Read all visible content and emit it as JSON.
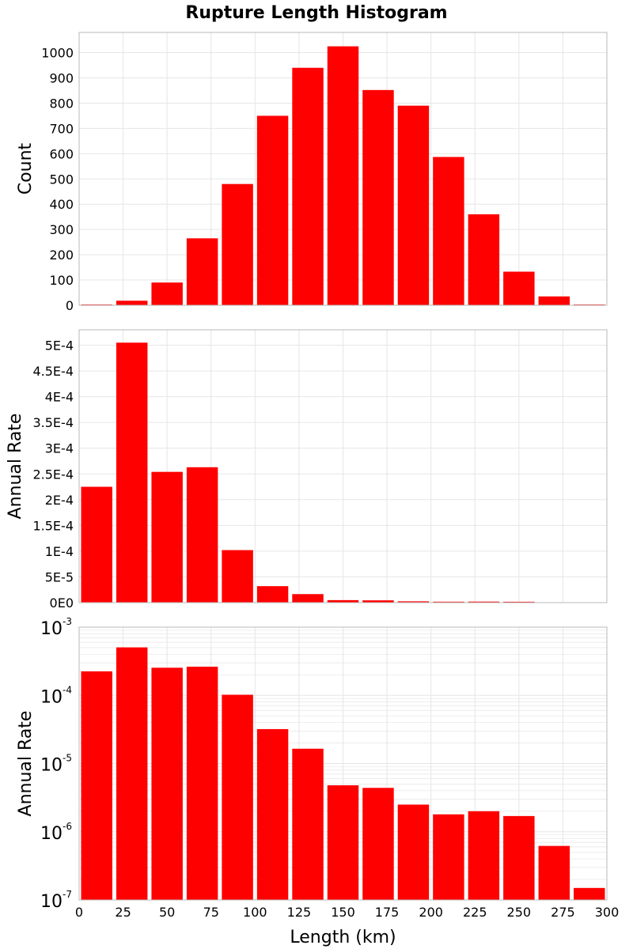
{
  "title": "Rupture Length Histogram",
  "bar_color": "#ff0000",
  "grid_color": "#e6e6e6",
  "frame_color": "#b8b8b8",
  "chart_data": [
    {
      "type": "bar",
      "title": "Rupture Length Histogram",
      "xlabel": "",
      "ylabel": "Count",
      "xlim": [
        0,
        300
      ],
      "ylim": [
        0,
        1080
      ],
      "y_scale": "linear",
      "grid": true,
      "bin_width": 20,
      "x": [
        10,
        30,
        50,
        70,
        90,
        110,
        130,
        150,
        170,
        190,
        210,
        230,
        250,
        270,
        290
      ],
      "values": [
        3,
        18,
        90,
        265,
        480,
        750,
        940,
        1025,
        852,
        790,
        587,
        360,
        133,
        35,
        3
      ],
      "yticks": [
        0,
        100,
        200,
        300,
        400,
        500,
        600,
        700,
        800,
        900,
        1000
      ],
      "ytick_labels": [
        "0",
        "100",
        "200",
        "300",
        "400",
        "500",
        "600",
        "700",
        "800",
        "900",
        "1000"
      ]
    },
    {
      "type": "bar",
      "xlabel": "",
      "ylabel": "Annual Rate",
      "xlim": [
        0,
        300
      ],
      "ylim": [
        0,
        0.00053
      ],
      "y_scale": "linear",
      "grid": true,
      "bin_width": 20,
      "x": [
        10,
        30,
        50,
        70,
        90,
        110,
        130,
        150,
        170,
        190,
        210,
        230,
        250,
        270,
        290
      ],
      "values": [
        0.000225,
        0.000505,
        0.000254,
        0.000263,
        0.000102,
        3.2e-05,
        1.65e-05,
        4.8e-06,
        4.4e-06,
        2.5e-06,
        1.8e-06,
        2e-06,
        1.7e-06,
        6.2e-07,
        1.5e-07
      ],
      "yticks": [
        0,
        5e-05,
        0.0001,
        0.00015,
        0.0002,
        0.00025,
        0.0003,
        0.00035,
        0.0004,
        0.00045,
        0.0005
      ],
      "ytick_labels": [
        "0E0",
        "5E-5",
        "1E-4",
        "1.5E-4",
        "2E-4",
        "2.5E-4",
        "3E-4",
        "3.5E-4",
        "4E-4",
        "4.5E-4",
        "5E-4"
      ]
    },
    {
      "type": "bar",
      "xlabel": "Length (km)",
      "ylabel": "Annual Rate",
      "xlim": [
        0,
        300
      ],
      "ylim": [
        1e-07,
        0.001
      ],
      "y_scale": "log",
      "grid": true,
      "bin_width": 20,
      "x": [
        10,
        30,
        50,
        70,
        90,
        110,
        130,
        150,
        170,
        190,
        210,
        230,
        250,
        270,
        290
      ],
      "values": [
        0.000225,
        0.000505,
        0.000254,
        0.000263,
        0.000102,
        3.2e-05,
        1.65e-05,
        4.8e-06,
        4.4e-06,
        2.5e-06,
        1.8e-06,
        2e-06,
        1.7e-06,
        6.2e-07,
        1.5e-07
      ],
      "ytick_labels": [
        {
          "base": "10",
          "exp": "-7"
        },
        {
          "base": "10",
          "exp": "-6"
        },
        {
          "base": "10",
          "exp": "-5"
        },
        {
          "base": "10",
          "exp": "-4"
        },
        {
          "base": "10",
          "exp": "-3"
        }
      ],
      "xticks": [
        0,
        25,
        50,
        75,
        100,
        125,
        150,
        175,
        200,
        225,
        250,
        275,
        300
      ],
      "xtick_labels": [
        "0",
        "25",
        "50",
        "75",
        "100",
        "125",
        "150",
        "175",
        "200",
        "225",
        "250",
        "275",
        "300"
      ]
    }
  ]
}
